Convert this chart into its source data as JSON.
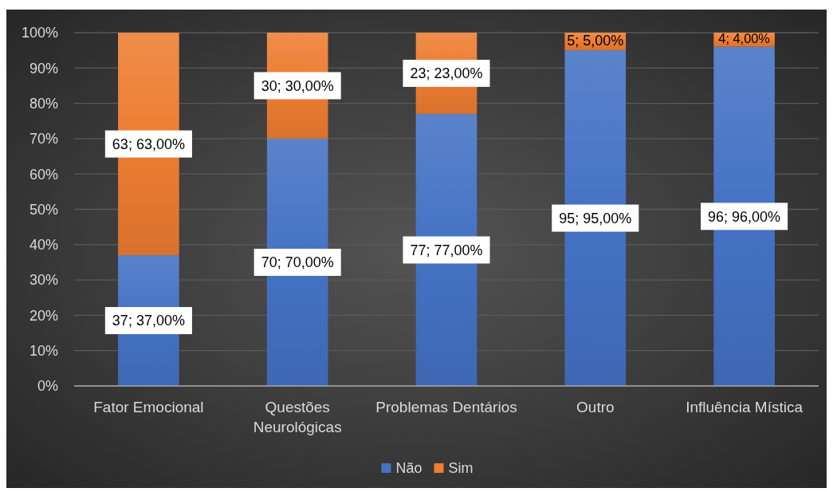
{
  "chart_data": {
    "type": "bar",
    "stacked": true,
    "categories": [
      "Fator Emocional",
      "Questões Neurológicas",
      "Problemas Dentários",
      "Outro",
      "Influência Mística"
    ],
    "series": [
      {
        "name": "Não",
        "color": "#4472c4",
        "values": [
          37,
          70,
          77,
          95,
          96
        ],
        "value_labels": [
          "37; 37,00%",
          "70; 70,00%",
          "77; 77,00%",
          "95; 95,00%",
          "96; 96,00%"
        ]
      },
      {
        "name": "Sim",
        "color": "#ed7d31",
        "values": [
          63,
          30,
          23,
          5,
          4
        ],
        "value_labels": [
          "63; 63,00%",
          "30; 30,00%",
          "23; 23,00%",
          "5; 5,00%",
          "4; 4,00%"
        ]
      }
    ],
    "ylim": [
      0,
      100
    ],
    "yticks": [
      {
        "value": 0,
        "label": "0%"
      },
      {
        "value": 10,
        "label": "10%"
      },
      {
        "value": 20,
        "label": "20%"
      },
      {
        "value": 30,
        "label": "30%"
      },
      {
        "value": 40,
        "label": "40%"
      },
      {
        "value": 50,
        "label": "50%"
      },
      {
        "value": 60,
        "label": "60%"
      },
      {
        "value": 70,
        "label": "70%"
      },
      {
        "value": 80,
        "label": "80%"
      },
      {
        "value": 90,
        "label": "90%"
      },
      {
        "value": 100,
        "label": "100%"
      }
    ],
    "grid": "y",
    "legend": "bottom"
  }
}
